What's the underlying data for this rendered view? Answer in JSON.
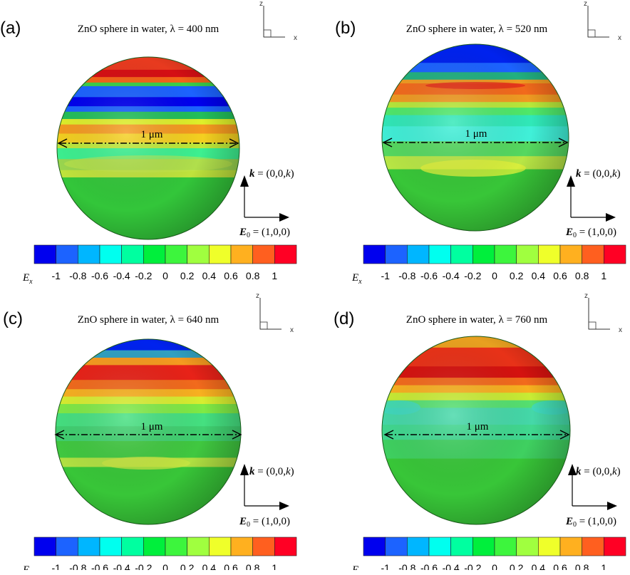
{
  "colorbar": {
    "colors": [
      "#0000ee",
      "#1c63ff",
      "#00b6ff",
      "#00ffef",
      "#00ffa0",
      "#00ef3c",
      "#3df53d",
      "#a0ff3f",
      "#efff2a",
      "#ffb01f",
      "#ff5f1f",
      "#ff0024"
    ],
    "symbol": "E",
    "subscript": "x",
    "ticks": [
      "-1",
      "-0.8",
      "-0.6",
      "-0.4",
      "-0.2",
      "0",
      "0.2",
      "0.4",
      "0.6",
      "0.8",
      "1"
    ]
  },
  "axes": {
    "z_label": "z",
    "x_label": "x"
  },
  "scale_label": "1 μm",
  "k_label": {
    "symbol": "k",
    "value": " = (0,0,",
    "k": "k",
    "close": ")"
  },
  "e_label": {
    "symbol": "E",
    "sub": "0",
    "value": " = (1,0,0)"
  },
  "panels": [
    {
      "letter": "(a)",
      "title": "ZnO sphere in water, λ = 400 nm",
      "wavelength_nm": 400,
      "bands": [
        {
          "t": 0.0,
          "c": "#e83a1f"
        },
        {
          "t": 0.07,
          "c": "#d50f14"
        },
        {
          "t": 0.11,
          "c": "#f56418"
        },
        {
          "t": 0.14,
          "c": "#3ccf4a"
        },
        {
          "t": 0.16,
          "c": "#1c63ff"
        },
        {
          "t": 0.22,
          "c": "#0000ee"
        },
        {
          "t": 0.27,
          "c": "#1c63ff"
        },
        {
          "t": 0.3,
          "c": "#22bf5a"
        },
        {
          "t": 0.34,
          "c": "#dff02a"
        },
        {
          "t": 0.37,
          "c": "#f59a20"
        },
        {
          "t": 0.42,
          "c": "#f4d020"
        },
        {
          "t": 0.47,
          "c": "#bfe93a"
        },
        {
          "t": 0.5,
          "c": "#3df090"
        },
        {
          "t": 0.56,
          "c": "#9ad64f"
        },
        {
          "t": 0.62,
          "c": "#bfe33c"
        },
        {
          "t": 0.66,
          "c": "#33c63a"
        },
        {
          "t": 1.0,
          "c": "#33c63a"
        }
      ]
    },
    {
      "letter": "(b)",
      "title": "ZnO sphere in water, λ = 520 nm",
      "wavelength_nm": 520,
      "bands": [
        {
          "t": 0.0,
          "c": "#0022ee"
        },
        {
          "t": 0.1,
          "c": "#1c63ff"
        },
        {
          "t": 0.15,
          "c": "#22b080"
        },
        {
          "t": 0.19,
          "c": "#ef9a22"
        },
        {
          "t": 0.21,
          "c": "#f26a1c"
        },
        {
          "t": 0.27,
          "c": "#ef9a22"
        },
        {
          "t": 0.31,
          "c": "#b8e83a"
        },
        {
          "t": 0.34,
          "c": "#4fe86a"
        },
        {
          "t": 0.38,
          "c": "#30e8b8"
        },
        {
          "t": 0.44,
          "c": "#40f0d8"
        },
        {
          "t": 0.52,
          "c": "#55d860"
        },
        {
          "t": 0.6,
          "c": "#b8e645"
        },
        {
          "t": 0.67,
          "c": "#38c638"
        },
        {
          "t": 1.0,
          "c": "#38c638"
        }
      ]
    },
    {
      "letter": "(c)",
      "title": "ZnO sphere in water, λ = 640 nm",
      "wavelength_nm": 640,
      "bands": [
        {
          "t": 0.0,
          "c": "#0022ee"
        },
        {
          "t": 0.06,
          "c": "#30a0c0"
        },
        {
          "t": 0.1,
          "c": "#f59a20"
        },
        {
          "t": 0.14,
          "c": "#e82218"
        },
        {
          "t": 0.22,
          "c": "#f26a1c"
        },
        {
          "t": 0.27,
          "c": "#f8b020"
        },
        {
          "t": 0.31,
          "c": "#d8ee30"
        },
        {
          "t": 0.35,
          "c": "#80ea45"
        },
        {
          "t": 0.4,
          "c": "#45e080"
        },
        {
          "t": 0.47,
          "c": "#40d070"
        },
        {
          "t": 0.55,
          "c": "#40c840"
        },
        {
          "t": 0.64,
          "c": "#b0e042"
        },
        {
          "t": 0.69,
          "c": "#38c638"
        },
        {
          "t": 1.0,
          "c": "#38c638"
        }
      ]
    },
    {
      "letter": "(d)",
      "title": "ZnO sphere in water, λ = 760 nm",
      "wavelength_nm": 760,
      "bands": [
        {
          "t": 0.0,
          "c": "#e8a020"
        },
        {
          "t": 0.06,
          "c": "#e83218"
        },
        {
          "t": 0.16,
          "c": "#d5120f"
        },
        {
          "t": 0.22,
          "c": "#f26a1c"
        },
        {
          "t": 0.26,
          "c": "#f8b020"
        },
        {
          "t": 0.3,
          "c": "#c8ec34"
        },
        {
          "t": 0.34,
          "c": "#55e070"
        },
        {
          "t": 0.38,
          "c": "#45d8a8"
        },
        {
          "t": 0.47,
          "c": "#40d890"
        },
        {
          "t": 0.55,
          "c": "#3fd060"
        },
        {
          "t": 0.65,
          "c": "#38c638"
        },
        {
          "t": 1.0,
          "c": "#38c638"
        }
      ]
    }
  ]
}
